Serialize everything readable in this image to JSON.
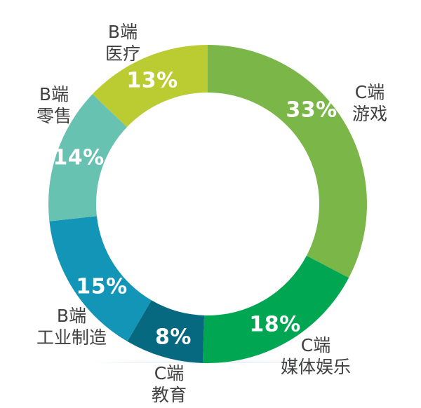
{
  "page": {
    "background": "#ffffff"
  },
  "chart_data": {
    "type": "pie",
    "subtype": "donut",
    "title": "",
    "unit": "%",
    "direction": "clockwise",
    "start_angle_deg": 0,
    "donut_hole_ratio": 0.7,
    "legend": "none",
    "value_text_color": "#ffffff",
    "category_text_color": "#404040",
    "segments": [
      {
        "label": "C端 游戏",
        "label_lines": [
          "C端",
          "游戏"
        ],
        "value": 33,
        "value_label": "33%",
        "color": "#7ab648"
      },
      {
        "label": "C端 媒体娱乐",
        "label_lines": [
          "C端",
          "媒体娱乐"
        ],
        "value": 18,
        "value_label": "18%",
        "color": "#00a651"
      },
      {
        "label": "C端 教育",
        "label_lines": [
          "C端",
          "教育"
        ],
        "value": 8,
        "value_label": "8%",
        "color": "#07697f"
      },
      {
        "label": "B端 工业制造",
        "label_lines": [
          "B端",
          "工业制造"
        ],
        "value": 15,
        "value_label": "15%",
        "color": "#1295b6"
      },
      {
        "label": "B端 零售",
        "label_lines": [
          "B端",
          "零售"
        ],
        "value": 14,
        "value_label": "14%",
        "color": "#67c2b2"
      },
      {
        "label": "B端 医疗",
        "label_lines": [
          "B端",
          "医疗"
        ],
        "value": 13,
        "value_label": "13%",
        "color": "#bbcc33"
      }
    ]
  }
}
